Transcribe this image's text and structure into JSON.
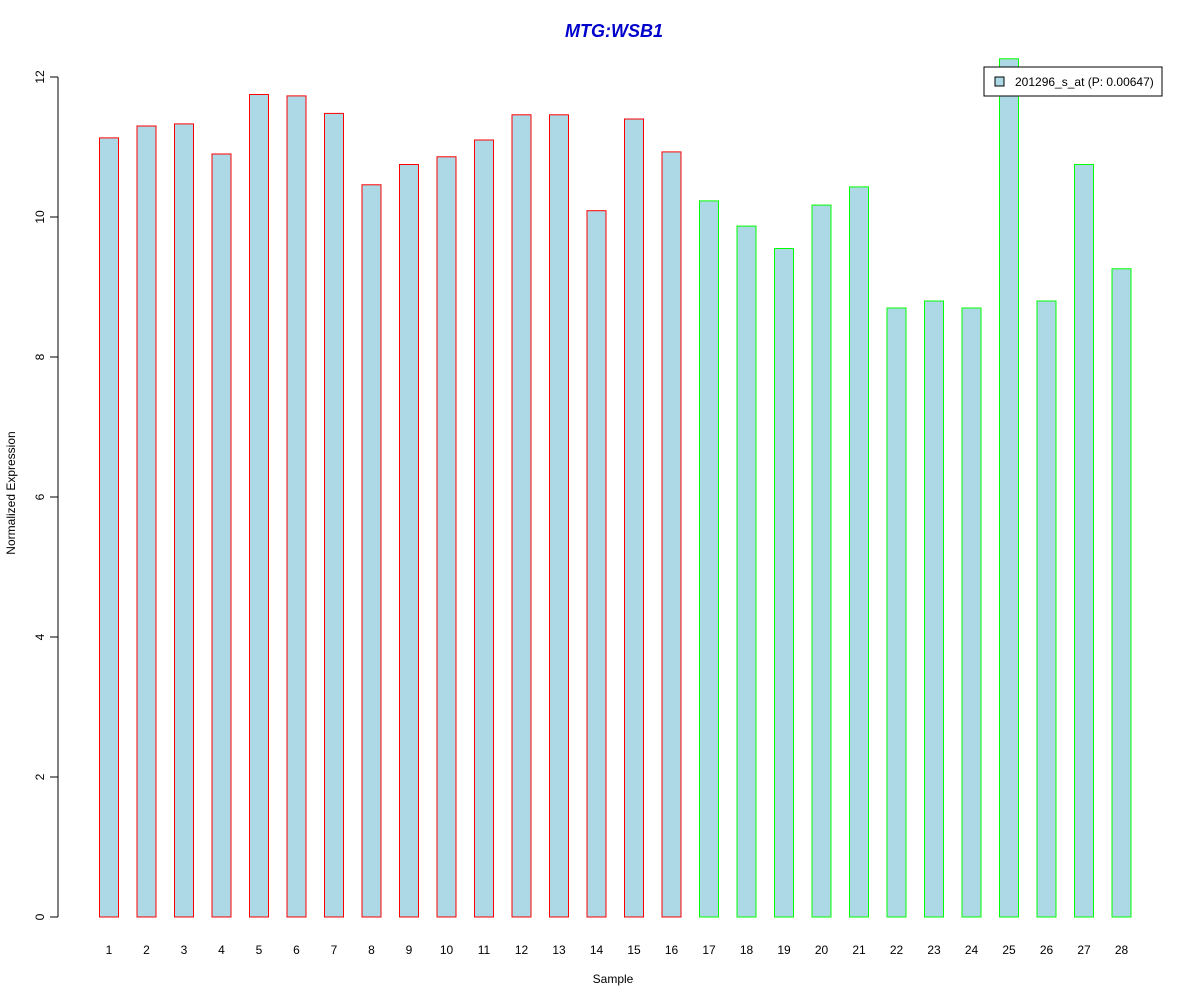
{
  "chart_data": {
    "type": "bar",
    "title": "MTG:WSB1",
    "xlabel": "Sample",
    "ylabel": "Normalized Expression",
    "ylim": [
      0,
      12
    ],
    "yticks": [
      "0",
      "2",
      "4",
      "6",
      "8",
      "10",
      "12"
    ],
    "categories": [
      "1",
      "2",
      "3",
      "4",
      "5",
      "6",
      "7",
      "8",
      "9",
      "10",
      "11",
      "12",
      "13",
      "14",
      "15",
      "16",
      "17",
      "18",
      "19",
      "20",
      "21",
      "22",
      "23",
      "24",
      "25",
      "26",
      "27",
      "28"
    ],
    "values": [
      11.13,
      11.3,
      11.33,
      10.9,
      11.75,
      11.73,
      11.48,
      10.46,
      10.75,
      10.86,
      11.1,
      11.46,
      11.46,
      10.09,
      11.4,
      10.93,
      10.23,
      9.87,
      9.55,
      10.17,
      10.43,
      8.7,
      8.8,
      8.7,
      12.26,
      8.8,
      10.75,
      9.26
    ],
    "series": [
      {
        "name": "201296_s_at (P: 0.00647)",
        "values": [
          11.13,
          11.3,
          11.33,
          10.9,
          11.75,
          11.73,
          11.48,
          10.46,
          10.75,
          10.86,
          11.1,
          11.46,
          11.46,
          10.09,
          11.4,
          10.93,
          10.23,
          9.87,
          9.55,
          10.17,
          10.43,
          8.7,
          8.8,
          8.7,
          12.26,
          8.8,
          10.75,
          9.26
        ]
      }
    ],
    "border_groups": [
      {
        "samples": "1-16",
        "color": "#ff0000"
      },
      {
        "samples": "17-28",
        "color": "#00ff00"
      }
    ],
    "fill_color": "#add8e6",
    "title_color": "#0000cc",
    "legend": {
      "label": "201296_s_at (P: 0.00647)",
      "position": "top-right"
    },
    "grid": false
  }
}
